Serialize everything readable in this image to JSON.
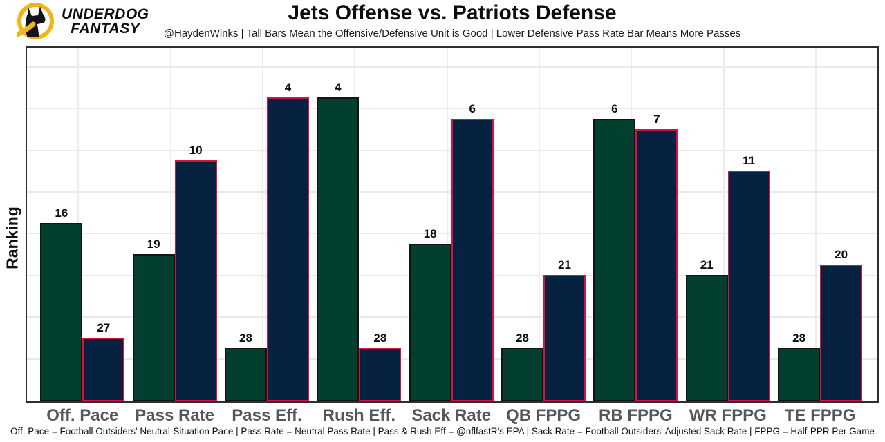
{
  "logo": {
    "brand_line1": "UNDERDOG",
    "brand_line2": "FANTASY",
    "gold": "#EFB61C",
    "icon": "underdog-dog-icon"
  },
  "header": {
    "title": "Jets Offense vs. Patriots Defense",
    "subtitle": "@HaydenWinks | Tall Bars Mean the Offensive/Defensive Unit is Good | Lower Defensive Pass Rate Bar Means More Passes"
  },
  "footnote": "Off. Pace = Football Outsiders' Neutral-Situation Pace | Pass Rate = Neutral Pass Rate | Pass & Rush Eff = @nflfastR's EPA | Sack Rate = Football Outsiders' Adjusted Sack Rate | FPPG = Half-PPR Per Game",
  "chart_data": {
    "type": "bar",
    "title": "Jets Offense vs. Patriots Defense",
    "ylabel": "Ranking",
    "xlabel": "",
    "categories": [
      "Off. Pace",
      "Pass Rate",
      "Pass Eff.",
      "Rush Eff.",
      "Sack Rate",
      "QB FPPG",
      "RB FPPG",
      "WR FPPG",
      "TE FPPG"
    ],
    "series": [
      {
        "name": "Jets Offense",
        "fill": "#023F2E",
        "outline": "#141414",
        "values": [
          16,
          19,
          28,
          4,
          18,
          28,
          6,
          21,
          28
        ]
      },
      {
        "name": "Patriots Defense",
        "fill": "#062240",
        "outline": "#D8123C",
        "values": [
          27,
          10,
          4,
          28,
          6,
          21,
          7,
          11,
          20
        ]
      }
    ],
    "value_meaning": "NFL ranking (1 = best of 32); taller bar = better rank; height ~ (33 - rank)",
    "bar_labels": "rank value shown above each bar",
    "ylim": [
      0,
      33
    ],
    "legend": "none",
    "grid": {
      "horizontal": true,
      "vertical_at_category_centers": true
    }
  }
}
